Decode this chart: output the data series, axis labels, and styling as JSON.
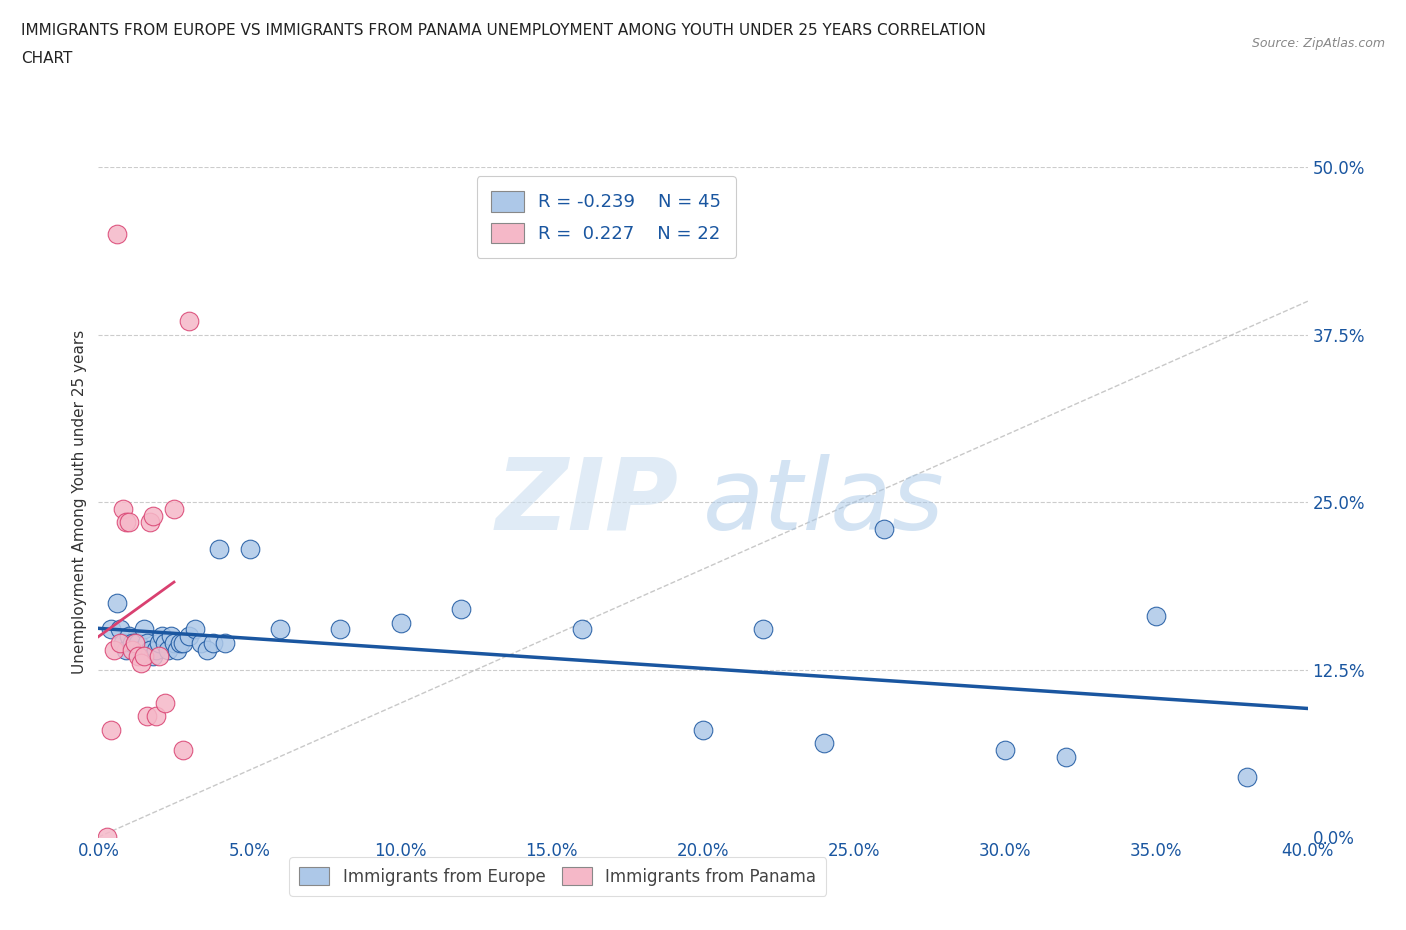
{
  "title_line1": "IMMIGRANTS FROM EUROPE VS IMMIGRANTS FROM PANAMA UNEMPLOYMENT AMONG YOUTH UNDER 25 YEARS CORRELATION",
  "title_line2": "CHART",
  "source": "Source: ZipAtlas.com",
  "ylabel": "Unemployment Among Youth under 25 years",
  "legend_label_1": "Immigrants from Europe",
  "legend_label_2": "Immigrants from Panama",
  "r1": -0.239,
  "n1": 45,
  "r2": 0.227,
  "n2": 22,
  "color1": "#adc8e8",
  "color2": "#f5b8c8",
  "trendline1_color": "#1a56a0",
  "trendline2_color": "#d94070",
  "xlim": [
    0.0,
    0.4
  ],
  "ylim": [
    0.0,
    0.5
  ],
  "xticks": [
    0.0,
    0.05,
    0.1,
    0.15,
    0.2,
    0.25,
    0.3,
    0.35,
    0.4
  ],
  "yticks_right": [
    0.0,
    0.125,
    0.25,
    0.375,
    0.5
  ],
  "background_color": "#ffffff",
  "blue_scatter_x": [
    0.004,
    0.006,
    0.007,
    0.008,
    0.009,
    0.01,
    0.011,
    0.012,
    0.013,
    0.014,
    0.015,
    0.016,
    0.017,
    0.018,
    0.019,
    0.02,
    0.021,
    0.022,
    0.023,
    0.024,
    0.025,
    0.026,
    0.027,
    0.028,
    0.03,
    0.032,
    0.034,
    0.036,
    0.038,
    0.04,
    0.042,
    0.05,
    0.06,
    0.08,
    0.1,
    0.12,
    0.16,
    0.2,
    0.22,
    0.24,
    0.26,
    0.3,
    0.32,
    0.35,
    0.38
  ],
  "blue_scatter_y": [
    0.155,
    0.175,
    0.155,
    0.145,
    0.14,
    0.15,
    0.145,
    0.145,
    0.145,
    0.14,
    0.155,
    0.145,
    0.14,
    0.135,
    0.14,
    0.145,
    0.15,
    0.145,
    0.14,
    0.15,
    0.145,
    0.14,
    0.145,
    0.145,
    0.15,
    0.155,
    0.145,
    0.14,
    0.145,
    0.215,
    0.145,
    0.215,
    0.155,
    0.155,
    0.16,
    0.17,
    0.155,
    0.08,
    0.155,
    0.07,
    0.23,
    0.065,
    0.06,
    0.165,
    0.045
  ],
  "pink_scatter_x": [
    0.003,
    0.004,
    0.005,
    0.006,
    0.007,
    0.008,
    0.009,
    0.01,
    0.011,
    0.012,
    0.013,
    0.014,
    0.015,
    0.016,
    0.017,
    0.018,
    0.019,
    0.02,
    0.022,
    0.025,
    0.028,
    0.03
  ],
  "pink_scatter_y": [
    0.0,
    0.08,
    0.14,
    0.45,
    0.145,
    0.245,
    0.235,
    0.235,
    0.14,
    0.145,
    0.135,
    0.13,
    0.135,
    0.09,
    0.235,
    0.24,
    0.09,
    0.135,
    0.1,
    0.245,
    0.065,
    0.385
  ]
}
